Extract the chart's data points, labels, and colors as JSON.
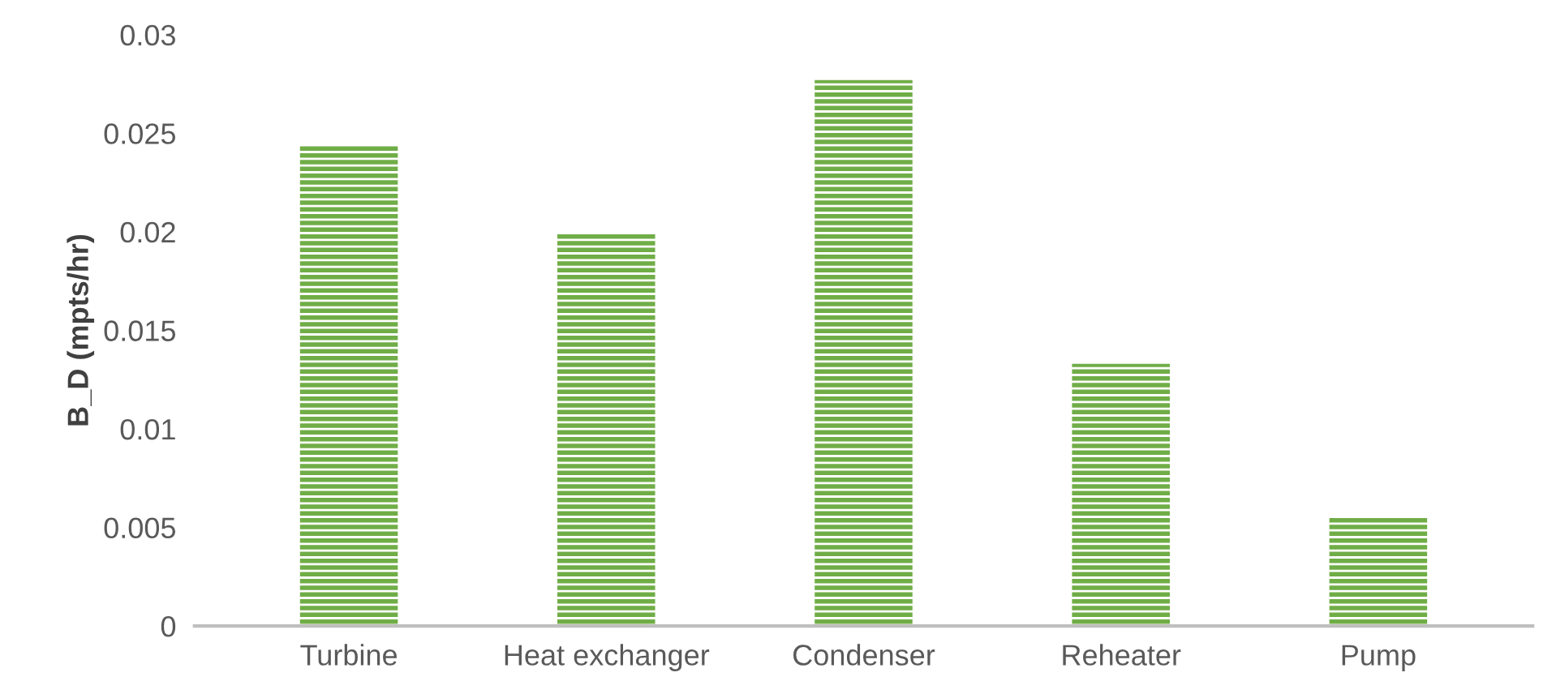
{
  "chart_data": {
    "type": "bar",
    "ylabel": "B_D (mpts/hr)",
    "categories": [
      "Turbine",
      "Heat exchanger",
      "Condenser",
      "Reheater",
      "Pump"
    ],
    "values": [
      0.0244,
      0.02,
      0.0277,
      0.0133,
      0.0055
    ],
    "color": "#70ad47",
    "ylim": [
      0,
      0.03
    ],
    "yticks": [
      0,
      0.005,
      0.01,
      0.015,
      0.02,
      0.025,
      0.03
    ],
    "grid": false
  }
}
